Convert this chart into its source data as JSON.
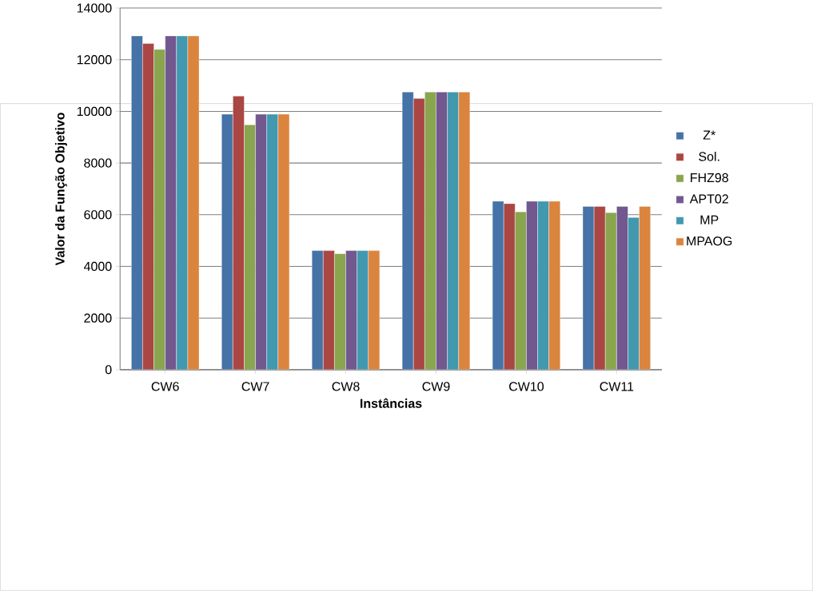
{
  "chart_data": {
    "type": "bar",
    "xlabel": "Instâncias",
    "ylabel": "Valor da Função Objetivo",
    "categories": [
      "CW6",
      "CW7",
      "CW8",
      "CW9",
      "CW10",
      "CW11"
    ],
    "series": [
      {
        "name": "Z*",
        "color": "#4572a7",
        "values": [
          12920,
          9890,
          4610,
          10750,
          6520,
          6320
        ]
      },
      {
        "name": "Sol.",
        "color": "#aa4643",
        "values": [
          12630,
          10590,
          4610,
          10500,
          6430,
          6320
        ]
      },
      {
        "name": "FHZ98",
        "color": "#89a54e",
        "values": [
          12400,
          9480,
          4490,
          10750,
          6110,
          6080
        ]
      },
      {
        "name": "APT02",
        "color": "#71588f",
        "values": [
          12920,
          9890,
          4610,
          10750,
          6520,
          6320
        ]
      },
      {
        "name": "MP",
        "color": "#4198af",
        "values": [
          12920,
          9890,
          4610,
          10750,
          6520,
          5890
        ]
      },
      {
        "name": "MPAOG",
        "color": "#db843d",
        "values": [
          12920,
          9890,
          4610,
          10750,
          6520,
          6320
        ]
      }
    ],
    "ylim": [
      0,
      14000
    ],
    "yticks": [
      0,
      2000,
      4000,
      6000,
      8000,
      10000,
      12000,
      14000
    ],
    "grid": "y",
    "legend": "right"
  }
}
